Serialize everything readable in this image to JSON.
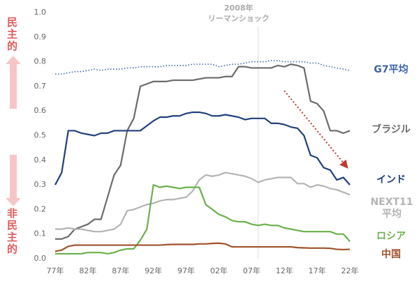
{
  "chart_data": {
    "type": "line",
    "x": [
      1977,
      1978,
      1979,
      1980,
      1981,
      1982,
      1983,
      1984,
      1985,
      1986,
      1987,
      1988,
      1989,
      1990,
      1991,
      1992,
      1993,
      1994,
      1995,
      1996,
      1997,
      1998,
      1999,
      2000,
      2001,
      2002,
      2003,
      2004,
      2005,
      2006,
      2007,
      2008,
      2009,
      2010,
      2011,
      2012,
      2013,
      2014,
      2015,
      2016,
      2017,
      2018,
      2019,
      2020,
      2021,
      2022
    ],
    "xlim": [
      1975,
      2023
    ],
    "xticks": [
      {
        "value": 1977,
        "label": "77年"
      },
      {
        "value": 1982,
        "label": "82年"
      },
      {
        "value": 1987,
        "label": "87年"
      },
      {
        "value": 1992,
        "label": "92年"
      },
      {
        "value": 1997,
        "label": "97年"
      },
      {
        "value": 2002,
        "label": "02年"
      },
      {
        "value": 2007,
        "label": "07年"
      },
      {
        "value": 2012,
        "label": "12年"
      },
      {
        "value": 2017,
        "label": "17年"
      },
      {
        "value": 2022,
        "label": "22年"
      }
    ],
    "ylim": [
      0,
      1
    ],
    "yticks": [
      {
        "value": 0,
        "label": "0.0"
      },
      0.1,
      0.2,
      0.3,
      0.4,
      0.5,
      0.6,
      0.7,
      0.8,
      0.9,
      {
        "value": 1,
        "label": "1.0"
      }
    ],
    "annotation": {
      "text": [
        "2008年",
        "リーマンショック"
      ],
      "x": 2008
    },
    "side_labels": {
      "top": "民主的",
      "bottom": "非民主的"
    },
    "series": [
      {
        "name": "G7平均",
        "color": "#3b63ad",
        "style": "dotted",
        "values": [
          0.75,
          0.75,
          0.755,
          0.76,
          0.76,
          0.765,
          0.77,
          0.765,
          0.77,
          0.77,
          0.77,
          0.775,
          0.775,
          0.78,
          0.78,
          0.78,
          0.78,
          0.785,
          0.785,
          0.785,
          0.785,
          0.79,
          0.79,
          0.79,
          0.79,
          0.78,
          0.785,
          0.79,
          0.79,
          0.795,
          0.8,
          0.8,
          0.8,
          0.805,
          0.805,
          0.8,
          0.8,
          0.8,
          0.8,
          0.795,
          0.795,
          0.785,
          0.78,
          0.775,
          0.77,
          0.765
        ]
      },
      {
        "name": "ブラジル",
        "color": "#6b6b6b",
        "style": "solid",
        "values": [
          0.08,
          0.08,
          0.09,
          0.12,
          0.13,
          0.14,
          0.16,
          0.16,
          0.25,
          0.34,
          0.38,
          0.52,
          0.57,
          0.7,
          0.71,
          0.72,
          0.72,
          0.72,
          0.725,
          0.725,
          0.725,
          0.725,
          0.73,
          0.735,
          0.735,
          0.735,
          0.74,
          0.74,
          0.78,
          0.78,
          0.775,
          0.775,
          0.775,
          0.775,
          0.785,
          0.78,
          0.79,
          0.785,
          0.775,
          0.64,
          0.63,
          0.6,
          0.52,
          0.52,
          0.51,
          0.52
        ]
      },
      {
        "name": "インド",
        "color": "#22407c",
        "style": "solid",
        "values": [
          0.3,
          0.35,
          0.52,
          0.52,
          0.51,
          0.505,
          0.5,
          0.51,
          0.51,
          0.52,
          0.52,
          0.52,
          0.52,
          0.52,
          0.54,
          0.56,
          0.575,
          0.575,
          0.58,
          0.58,
          0.59,
          0.595,
          0.595,
          0.59,
          0.58,
          0.58,
          0.585,
          0.58,
          0.575,
          0.565,
          0.57,
          0.57,
          0.57,
          0.55,
          0.55,
          0.545,
          0.535,
          0.53,
          0.5,
          0.42,
          0.41,
          0.37,
          0.36,
          0.32,
          0.33,
          0.3
        ]
      },
      {
        "name": "NEXT11平均",
        "color": "#b4b4b4",
        "style": "solid",
        "values": [
          0.12,
          0.12,
          0.125,
          0.12,
          0.12,
          0.115,
          0.11,
          0.11,
          0.115,
          0.12,
          0.14,
          0.195,
          0.2,
          0.21,
          0.22,
          0.225,
          0.235,
          0.24,
          0.24,
          0.245,
          0.25,
          0.275,
          0.32,
          0.34,
          0.335,
          0.34,
          0.35,
          0.345,
          0.34,
          0.335,
          0.325,
          0.31,
          0.32,
          0.325,
          0.33,
          0.33,
          0.33,
          0.305,
          0.305,
          0.29,
          0.3,
          0.295,
          0.285,
          0.28,
          0.27,
          0.26
        ]
      },
      {
        "name": "ロシア",
        "color": "#6ab04c",
        "style": "solid",
        "values": [
          0.02,
          0.02,
          0.02,
          0.02,
          0.02,
          0.025,
          0.025,
          0.025,
          0.02,
          0.025,
          0.035,
          0.04,
          0.04,
          0.075,
          0.12,
          0.3,
          0.29,
          0.295,
          0.29,
          0.285,
          0.29,
          0.29,
          0.29,
          0.22,
          0.2,
          0.18,
          0.17,
          0.155,
          0.15,
          0.15,
          0.14,
          0.135,
          0.14,
          0.135,
          0.135,
          0.125,
          0.12,
          0.115,
          0.11,
          0.11,
          0.11,
          0.11,
          0.11,
          0.1,
          0.1,
          0.07
        ]
      },
      {
        "name": "中国",
        "color": "#a0522d",
        "style": "solid",
        "values": [
          0.03,
          0.035,
          0.05,
          0.055,
          0.055,
          0.055,
          0.055,
          0.055,
          0.055,
          0.055,
          0.055,
          0.055,
          0.055,
          0.055,
          0.055,
          0.055,
          0.055,
          0.057,
          0.058,
          0.058,
          0.058,
          0.058,
          0.06,
          0.06,
          0.062,
          0.063,
          0.06,
          0.048,
          0.048,
          0.048,
          0.048,
          0.048,
          0.048,
          0.048,
          0.048,
          0.048,
          0.048,
          0.045,
          0.044,
          0.043,
          0.043,
          0.043,
          0.042,
          0.038,
          0.037,
          0.038
        ]
      }
    ]
  }
}
